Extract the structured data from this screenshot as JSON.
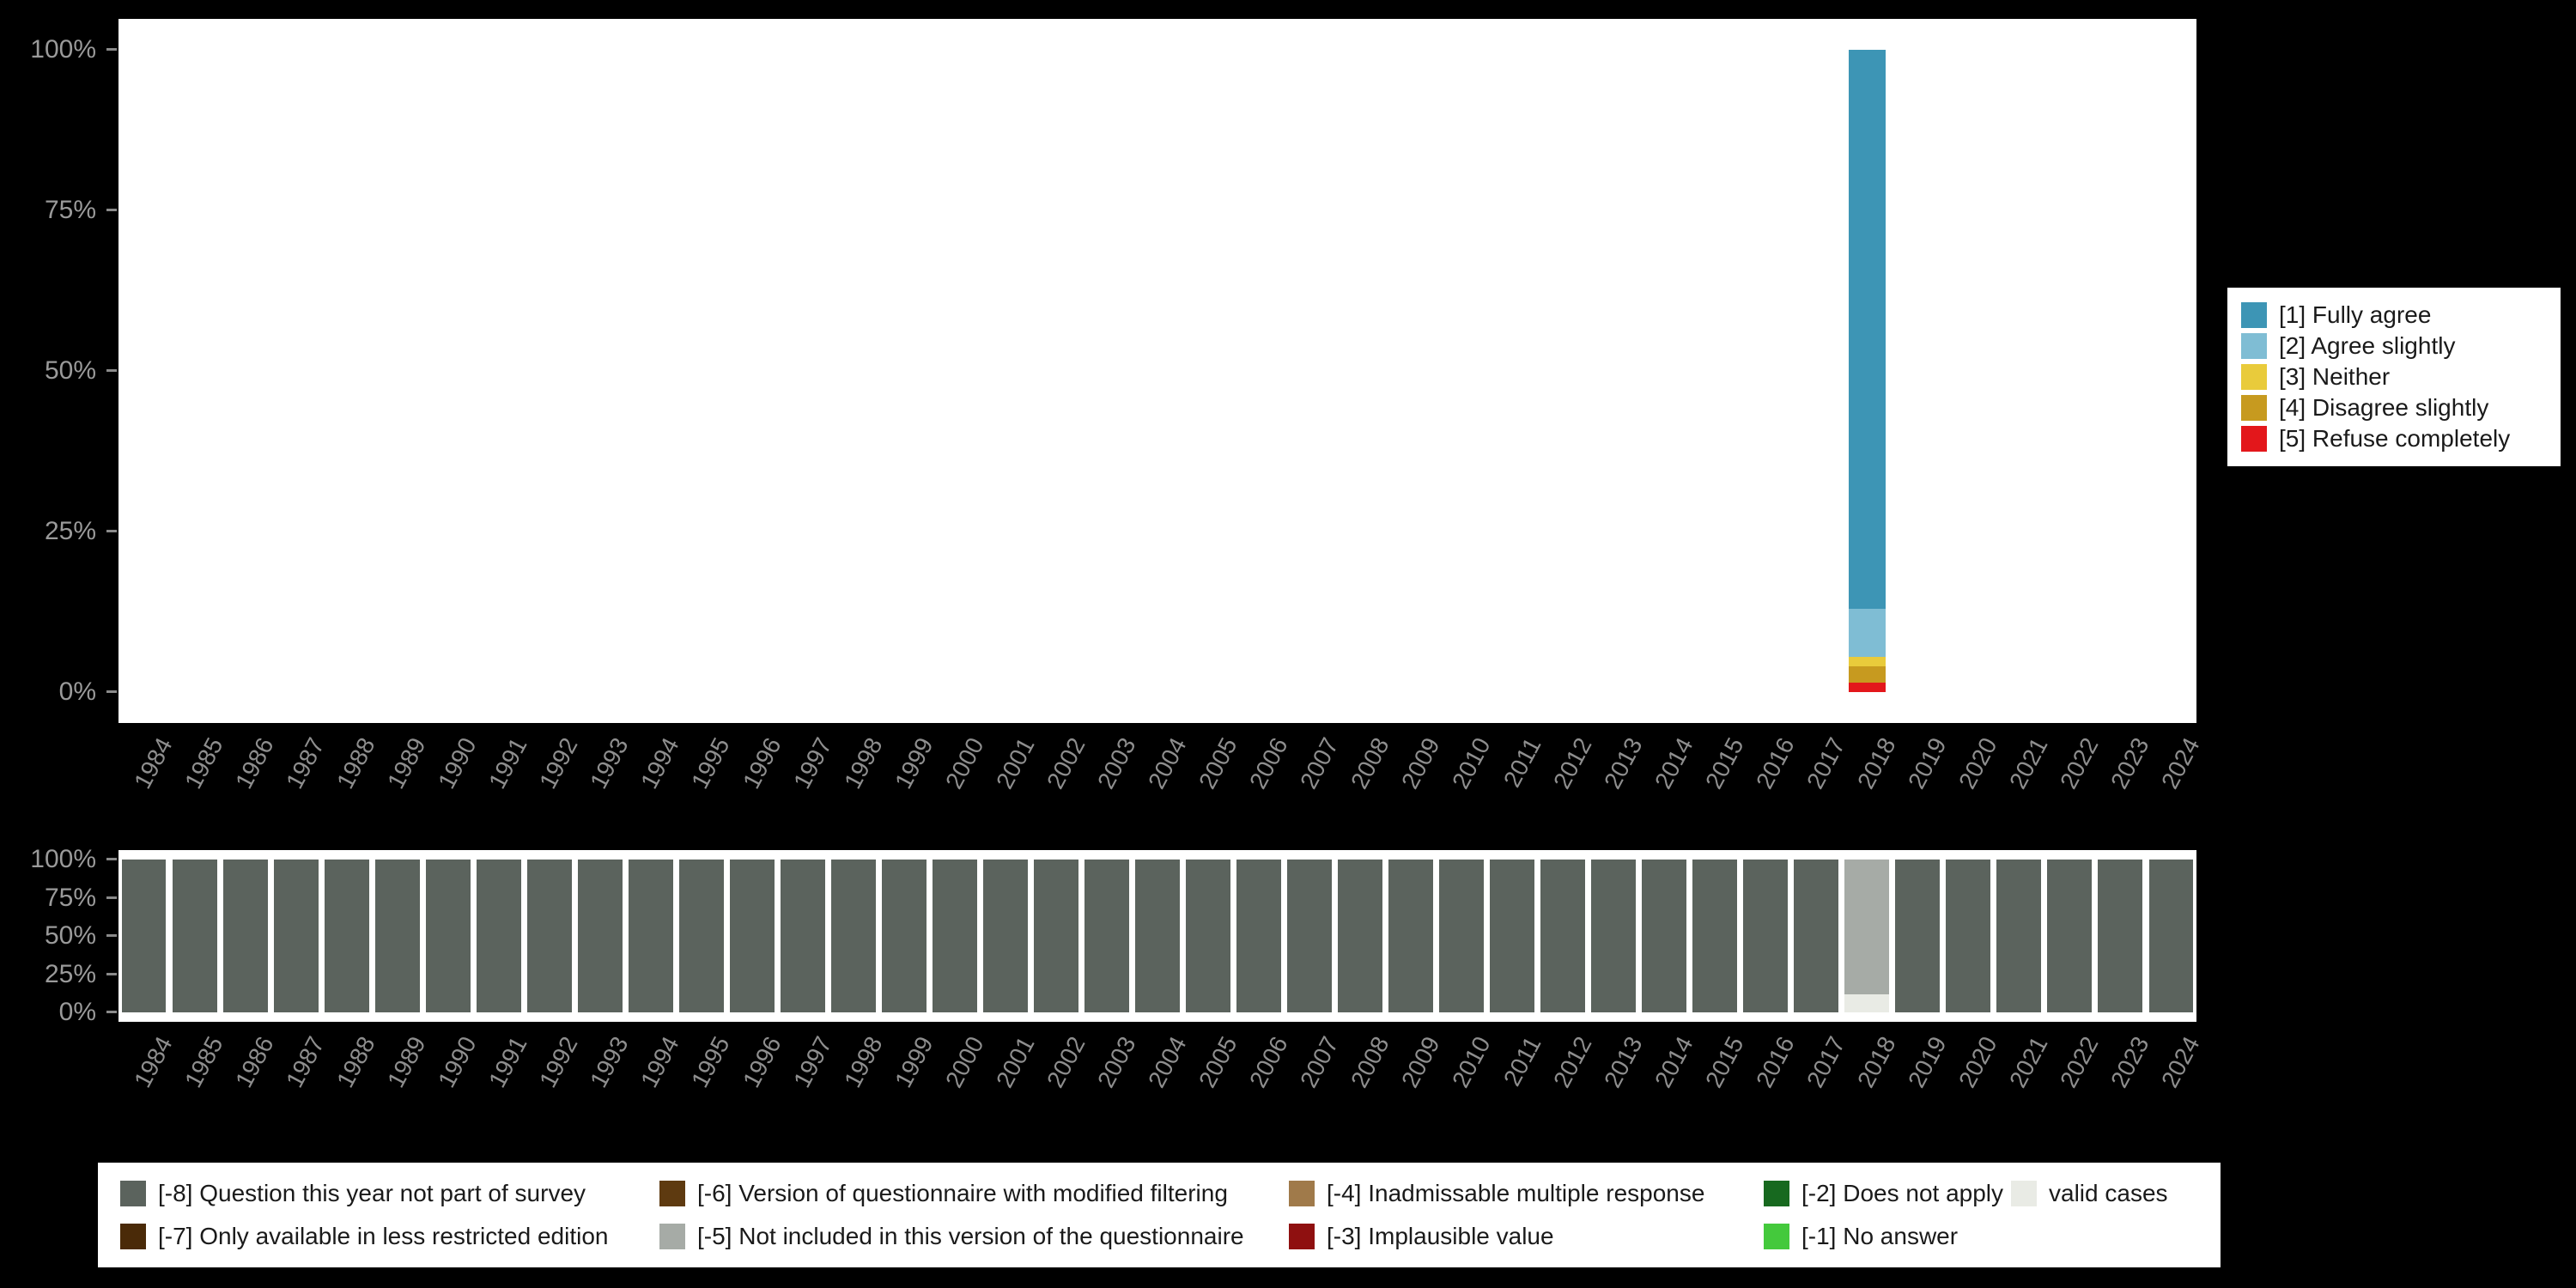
{
  "page": {
    "background": "#000000"
  },
  "chart_data": [
    {
      "id": "answers",
      "type": "bar",
      "stacked": true,
      "title": "",
      "xlabel": "",
      "ylabel": "",
      "x": [
        1984,
        1985,
        1986,
        1987,
        1988,
        1989,
        1990,
        1991,
        1992,
        1993,
        1994,
        1995,
        1996,
        1997,
        1998,
        1999,
        2000,
        2001,
        2002,
        2003,
        2004,
        2005,
        2006,
        2007,
        2008,
        2009,
        2010,
        2011,
        2012,
        2013,
        2014,
        2015,
        2016,
        2017,
        2018,
        2019,
        2020,
        2021,
        2022,
        2023,
        2024
      ],
      "yticks": [
        0,
        25,
        50,
        75,
        100
      ],
      "ytick_suffix": "%",
      "ylim": [
        0,
        100
      ],
      "grid": false,
      "legend_position": "right",
      "series": [
        {
          "name": "[5] Refuse completely",
          "color": "#e3171b",
          "default": 0,
          "values": {
            "2018": 1.5
          }
        },
        {
          "name": "[4] Disagree slightly",
          "color": "#c79a1f",
          "default": 0,
          "values": {
            "2018": 2.5
          }
        },
        {
          "name": "[3] Neither",
          "color": "#e9cb3b",
          "default": 0,
          "values": {
            "2018": 1.5
          }
        },
        {
          "name": "[2] Agree slightly",
          "color": "#7fbdd4",
          "default": 0,
          "values": {
            "2018": 7.5
          }
        },
        {
          "name": "[1] Fully agree",
          "color": "#3d95b5",
          "default": 0,
          "values": {
            "2018": 87
          }
        }
      ]
    },
    {
      "id": "missings",
      "type": "bar",
      "stacked": true,
      "title": "",
      "xlabel": "",
      "ylabel": "",
      "x": [
        1984,
        1985,
        1986,
        1987,
        1988,
        1989,
        1990,
        1991,
        1992,
        1993,
        1994,
        1995,
        1996,
        1997,
        1998,
        1999,
        2000,
        2001,
        2002,
        2003,
        2004,
        2005,
        2006,
        2007,
        2008,
        2009,
        2010,
        2011,
        2012,
        2013,
        2014,
        2015,
        2016,
        2017,
        2018,
        2019,
        2020,
        2021,
        2022,
        2023,
        2024
      ],
      "yticks": [
        0,
        25,
        50,
        75,
        100
      ],
      "ytick_suffix": "%",
      "ylim": [
        0,
        100
      ],
      "grid": false,
      "legend_position": "bottom",
      "series": [
        {
          "name": "valid cases",
          "color": "#e9ebe5",
          "default": 0,
          "values": {
            "2018": 12
          }
        },
        {
          "name": "[-1] No answer",
          "color": "#44c93c",
          "default": 0,
          "values": {}
        },
        {
          "name": "[-2] Does not apply",
          "color": "#17691f",
          "default": 0,
          "values": {}
        },
        {
          "name": "[-3] Implausible value",
          "color": "#8f1010",
          "default": 0,
          "values": {}
        },
        {
          "name": "[-4] Inadmissable multiple response",
          "color": "#a07a4a",
          "default": 0,
          "values": {}
        },
        {
          "name": "[-5] Not included in this version of the questionnaire",
          "color": "#a6aba6",
          "default": 0,
          "values": {
            "2018": 88
          }
        },
        {
          "name": "[-6] Version of questionnaire with modified filtering",
          "color": "#5e3a10",
          "default": 0,
          "values": {}
        },
        {
          "name": "[-7] Only available in less restricted edition",
          "color": "#4a2a08",
          "default": 0,
          "values": {}
        },
        {
          "name": "[-8] Question this year not part of survey",
          "color": "#5b635d",
          "default": 100,
          "values": {
            "2018": 0
          }
        }
      ]
    }
  ],
  "legend_top": {
    "items": [
      {
        "label": "[1] Fully agree",
        "color": "#3d95b5"
      },
      {
        "label": "[2] Agree slightly",
        "color": "#7fbdd4"
      },
      {
        "label": "[3] Neither",
        "color": "#e9cb3b"
      },
      {
        "label": "[4] Disagree slightly",
        "color": "#c79a1f"
      },
      {
        "label": "[5] Refuse completely",
        "color": "#e3171b"
      }
    ]
  },
  "legend_bottom": {
    "rows": [
      [
        {
          "label": "[-8] Question this year not part of survey",
          "color": "#5b635d"
        },
        {
          "label": "[-6] Version of questionnaire with modified filtering",
          "color": "#5e3a10"
        },
        {
          "label": "[-4] Inadmissable multiple response",
          "color": "#a07a4a"
        },
        {
          "label": "[-2] Does not apply",
          "color": "#17691f"
        },
        {
          "label": "valid cases",
          "color": "#e9ebe5"
        }
      ],
      [
        {
          "label": "[-7] Only available in less restricted edition",
          "color": "#4a2a08"
        },
        {
          "label": "[-5] Not included in this version of the questionnaire",
          "color": "#a6aba6"
        },
        {
          "label": "[-3] Implausible value",
          "color": "#8f1010"
        },
        {
          "label": "[-1] No answer",
          "color": "#44c93c"
        },
        null
      ]
    ]
  }
}
